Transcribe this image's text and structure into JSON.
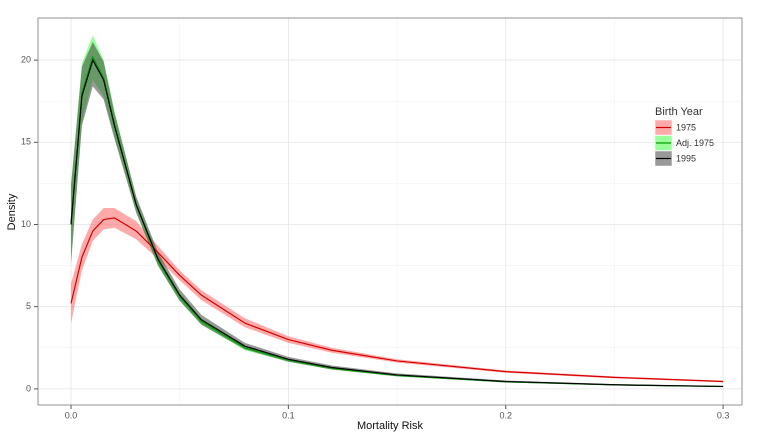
{
  "chart_data": {
    "type": "line",
    "xlabel": "Mortality Risk",
    "ylabel": "Density",
    "legend_title": "Birth Year",
    "x": [
      0,
      0.005,
      0.01,
      0.015,
      0.02,
      0.03,
      0.04,
      0.05,
      0.06,
      0.08,
      0.1,
      0.12,
      0.15,
      0.2,
      0.25,
      0.3
    ],
    "series": [
      {
        "name": "1975",
        "color": "#d40000",
        "band_color": "#ff5555",
        "values": [
          5.2,
          8.0,
          9.6,
          10.3,
          10.4,
          9.6,
          8.3,
          6.9,
          5.7,
          4.0,
          3.0,
          2.35,
          1.7,
          1.05,
          0.7,
          0.45
        ],
        "lower": [
          4.0,
          7.2,
          9.0,
          9.7,
          9.8,
          9.1,
          7.9,
          6.6,
          5.4,
          3.75,
          2.8,
          2.2,
          1.6,
          0.98,
          0.64,
          0.4
        ],
        "upper": [
          6.4,
          8.8,
          10.3,
          11.0,
          11.0,
          10.2,
          8.7,
          7.2,
          6.0,
          4.3,
          3.2,
          2.5,
          1.8,
          1.12,
          0.76,
          0.5
        ]
      },
      {
        "name": "Adj. 1975",
        "color": "#00a000",
        "band_color": "#33ff33",
        "values": [
          10.1,
          18.0,
          20.2,
          18.9,
          16.1,
          11.2,
          7.8,
          5.6,
          4.1,
          2.5,
          1.75,
          1.25,
          0.82,
          0.43,
          0.24,
          0.14
        ],
        "lower": [
          7.8,
          16.2,
          18.8,
          17.8,
          15.3,
          10.8,
          7.5,
          5.35,
          3.9,
          2.35,
          1.65,
          1.17,
          0.76,
          0.39,
          0.21,
          0.12
        ],
        "upper": [
          12.4,
          19.8,
          21.5,
          20.0,
          16.9,
          11.6,
          8.1,
          5.85,
          4.3,
          2.65,
          1.85,
          1.33,
          0.88,
          0.47,
          0.27,
          0.16
        ]
      },
      {
        "name": "1995",
        "color": "#000000",
        "band_color": "#333333",
        "values": [
          10.0,
          17.8,
          20.0,
          18.8,
          16.0,
          11.2,
          7.9,
          5.7,
          4.2,
          2.6,
          1.8,
          1.3,
          0.85,
          0.45,
          0.25,
          0.15
        ],
        "lower": [
          7.6,
          16.0,
          18.4,
          17.6,
          15.2,
          10.7,
          7.5,
          5.35,
          3.9,
          2.4,
          1.65,
          1.18,
          0.76,
          0.39,
          0.21,
          0.12
        ],
        "upper": [
          12.4,
          19.6,
          21.1,
          19.9,
          16.8,
          11.7,
          8.3,
          6.05,
          4.5,
          2.8,
          1.95,
          1.42,
          0.94,
          0.51,
          0.29,
          0.18
        ]
      }
    ],
    "xlim": [
      -0.0152,
      0.3087
    ],
    "ylim": [
      -0.98,
      22.56
    ],
    "xticks": [
      {
        "value": 0,
        "label": "0.0"
      },
      0.1,
      0.2,
      0.3
    ],
    "yticks": [
      0,
      5,
      10,
      15,
      20
    ],
    "grid": true,
    "legend": "right"
  }
}
